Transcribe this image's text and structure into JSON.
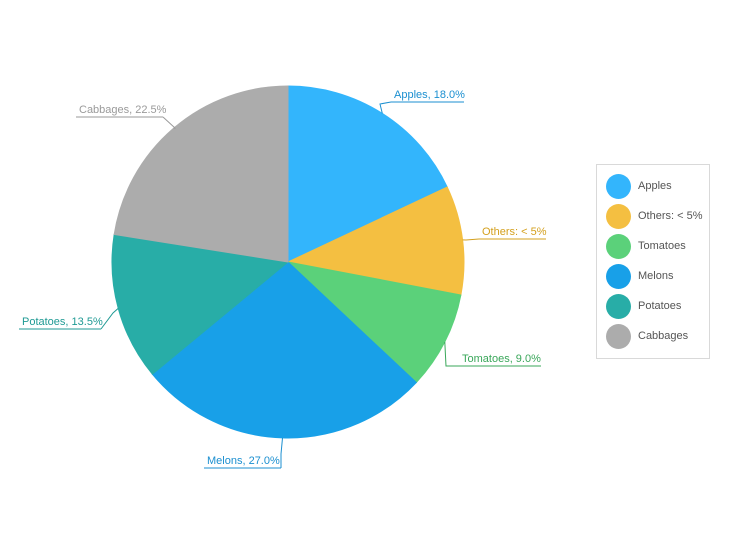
{
  "chart_data": {
    "type": "pie",
    "slices": [
      {
        "name": "Apples",
        "value": 18.0,
        "label": "Apples, 18.0%",
        "color": "#33b5fc"
      },
      {
        "name": "Others: < 5%",
        "value": 10.0,
        "label": "Others: < 5%",
        "color": "#f4bf41"
      },
      {
        "name": "Tomatoes",
        "value": 9.0,
        "label": "Tomatoes, 9.0%",
        "color": "#5bd17a"
      },
      {
        "name": "Melons",
        "value": 27.0,
        "label": "Melons, 27.0%",
        "color": "#18a0e8"
      },
      {
        "name": "Potatoes",
        "value": 13.5,
        "label": "Potatoes, 13.5%",
        "color": "#28ada7"
      },
      {
        "name": "Cabbages",
        "value": 22.5,
        "label": "Cabbages, 22.5%",
        "color": "#acacac"
      }
    ],
    "label_colors": {
      "Apples": "#1b8fd0",
      "Others: < 5%": "#d4a01e",
      "Tomatoes": "#3aa75a",
      "Melons": "#1b8fd0",
      "Potatoes": "#1f9a94",
      "Cabbages": "#9a9a9a"
    },
    "legend": {
      "placement": "right",
      "items": [
        "Apples",
        "Others: < 5%",
        "Tomatoes",
        "Melons",
        "Potatoes",
        "Cabbages"
      ]
    }
  }
}
